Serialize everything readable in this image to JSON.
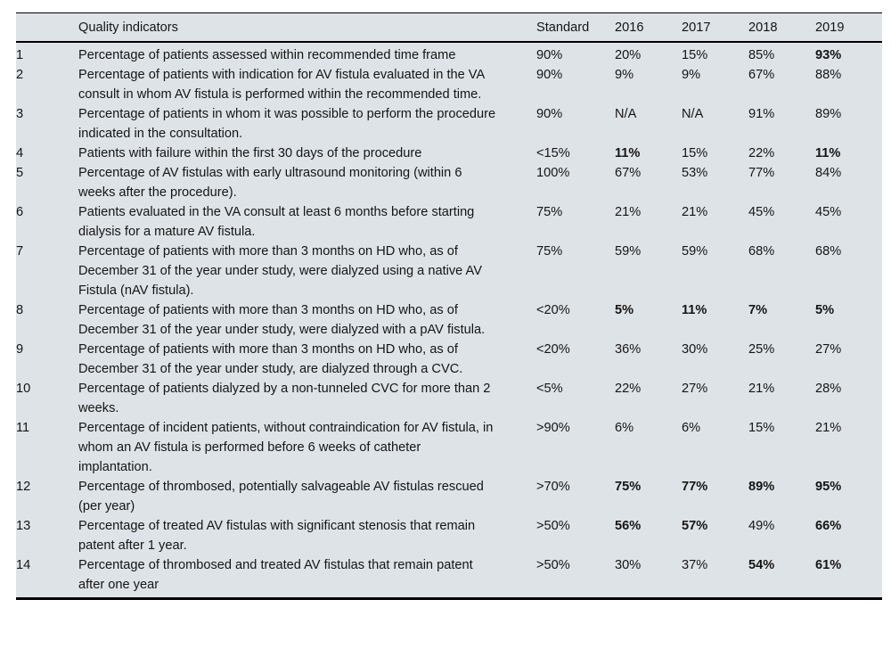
{
  "colors": {
    "table_bg": "#dee3e7",
    "rule": "#000000",
    "text": "#151515"
  },
  "table": {
    "header": {
      "number": "",
      "indicator": "Quality indicators",
      "standard": "Standard",
      "years": [
        "2016",
        "2017",
        "2018",
        "2019"
      ]
    },
    "rows": [
      {
        "num": "1",
        "indicator": "Percentage of patients assessed within recommended time frame",
        "standard": "90%",
        "values": [
          "20%",
          "15%",
          "85%",
          "93%"
        ],
        "bold": [
          false,
          false,
          false,
          true
        ]
      },
      {
        "num": "2",
        "indicator": "Percentage of patients with indication for AV fistula evaluated in the VA consult in whom AV fistula is performed within the recommended time.",
        "standard": "90%",
        "values": [
          "9%",
          "9%",
          "67%",
          "88%"
        ],
        "bold": [
          false,
          false,
          false,
          false
        ]
      },
      {
        "num": "3",
        "indicator": "Percentage of patients in whom it was possible to perform the procedure indicated in the consultation.",
        "standard": "90%",
        "values": [
          "N/A",
          "N/A",
          "91%",
          "89%"
        ],
        "bold": [
          false,
          false,
          false,
          false
        ]
      },
      {
        "num": "4",
        "indicator": "Patients with failure within the first 30 days of the procedure",
        "standard": "<15%",
        "values": [
          "11%",
          "15%",
          "22%",
          "11%"
        ],
        "bold": [
          true,
          false,
          false,
          true
        ]
      },
      {
        "num": "5",
        "indicator": "Percentage of AV fistulas with early ultrasound monitoring (within 6 weeks after the procedure).",
        "standard": "100%",
        "values": [
          "67%",
          "53%",
          "77%",
          "84%"
        ],
        "bold": [
          false,
          false,
          false,
          false
        ]
      },
      {
        "num": "6",
        "indicator": "Patients evaluated in the VA consult at least 6 months before starting dialysis for a mature AV fistula.",
        "standard": "75%",
        "values": [
          "21%",
          "21%",
          "45%",
          "45%"
        ],
        "bold": [
          false,
          false,
          false,
          false
        ]
      },
      {
        "num": "7",
        "indicator": "Percentage of patients with more than 3 months on HD who, as of December 31 of the year under study, were dialyzed using a native AV Fistula (nAV fistula).",
        "standard": "75%",
        "values": [
          "59%",
          "59%",
          "68%",
          "68%"
        ],
        "bold": [
          false,
          false,
          false,
          false
        ]
      },
      {
        "num": "8",
        "indicator": "Percentage of patients with more than 3 months on HD who, as of December 31 of the year under study, were dialyzed with a pAV fistula.",
        "standard": "<20%",
        "values": [
          "5%",
          "11%",
          "7%",
          "5%"
        ],
        "bold": [
          true,
          true,
          true,
          true
        ]
      },
      {
        "num": "9",
        "indicator": "Percentage of patients with more than 3 months on HD who, as of December 31 of the year under study, are dialyzed through a CVC.",
        "standard": "<20%",
        "values": [
          "36%",
          "30%",
          "25%",
          "27%"
        ],
        "bold": [
          false,
          false,
          false,
          false
        ]
      },
      {
        "num": "10",
        "indicator": "Percentage of patients dialyzed by a non-tunneled CVC for more than 2 weeks.",
        "standard": "<5%",
        "values": [
          "22%",
          "27%",
          "21%",
          "28%"
        ],
        "bold": [
          false,
          false,
          false,
          false
        ]
      },
      {
        "num": "11",
        "indicator": "Percentage of incident patients, without contraindication for AV fistula, in whom an AV fistula is performed before 6 weeks of catheter implantation.",
        "standard": ">90%",
        "values": [
          "6%",
          "6%",
          "15%",
          "21%"
        ],
        "bold": [
          false,
          false,
          false,
          false
        ]
      },
      {
        "num": "12",
        "indicator": "Percentage of thrombosed, potentially salvageable AV fistulas rescued (per year)",
        "standard": ">70%",
        "values": [
          "75%",
          "77%",
          "89%",
          "95%"
        ],
        "bold": [
          true,
          true,
          true,
          true
        ]
      },
      {
        "num": "13",
        "indicator": "Percentage of treated AV fistulas with significant stenosis that remain patent after 1 year.",
        "standard": ">50%",
        "values": [
          "56%",
          "57%",
          "49%",
          "66%"
        ],
        "bold": [
          true,
          true,
          false,
          true
        ]
      },
      {
        "num": "14",
        "indicator": "Percentage of thrombosed and treated AV fistulas that remain patent after one year",
        "standard": ">50%",
        "values": [
          "30%",
          "37%",
          "54%",
          "61%"
        ],
        "bold": [
          false,
          false,
          true,
          true
        ]
      }
    ]
  }
}
